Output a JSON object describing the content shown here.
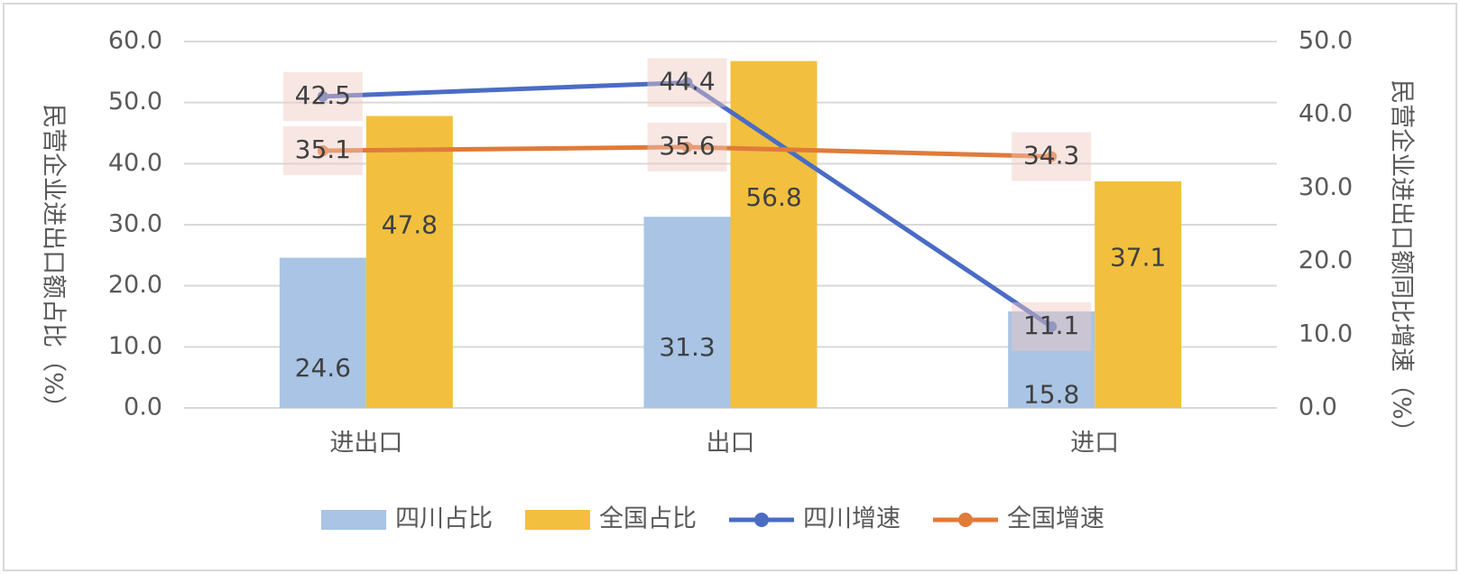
{
  "chart_data": {
    "type": "bar-line",
    "categories": [
      "进出口",
      "出口",
      "进口"
    ],
    "ylabel": "民营企业进出口额占比（%）",
    "y2label": "民营企业进出口额同比增速（%）",
    "ylim": [
      0,
      60
    ],
    "yticks": [
      {
        "value": 0,
        "label": "0.0"
      },
      {
        "value": 10,
        "label": "10.0"
      },
      {
        "value": 20,
        "label": "20.0"
      },
      {
        "value": 30,
        "label": "30.0"
      },
      {
        "value": 40,
        "label": "40.0"
      },
      {
        "value": 50,
        "label": "50.0"
      },
      {
        "value": 60,
        "label": "60.0"
      }
    ],
    "y2lim": [
      0,
      50
    ],
    "y2ticks": [
      {
        "value": 0,
        "label": "0.0"
      },
      {
        "value": 10,
        "label": "10.0"
      },
      {
        "value": 20,
        "label": "20.0"
      },
      {
        "value": 30,
        "label": "30.0"
      },
      {
        "value": 40,
        "label": "40.0"
      },
      {
        "value": 50,
        "label": "50.0"
      }
    ],
    "grid": true,
    "legend": "bottom",
    "series": [
      {
        "name": "四川占比",
        "kind": "bar",
        "color": "#a9c4e4",
        "values": [
          24.6,
          31.3,
          15.8
        ]
      },
      {
        "name": "全国占比",
        "kind": "bar",
        "color": "#f2c03e",
        "values": [
          47.8,
          56.8,
          37.1
        ]
      },
      {
        "name": "四川增速",
        "kind": "line",
        "axis": "y2",
        "color": "#4a6cc4",
        "values": [
          42.5,
          44.4,
          11.1
        ]
      },
      {
        "name": "全国增速",
        "kind": "line",
        "axis": "y2",
        "color": "#e07b39",
        "values": [
          35.1,
          35.6,
          34.3
        ]
      }
    ]
  }
}
